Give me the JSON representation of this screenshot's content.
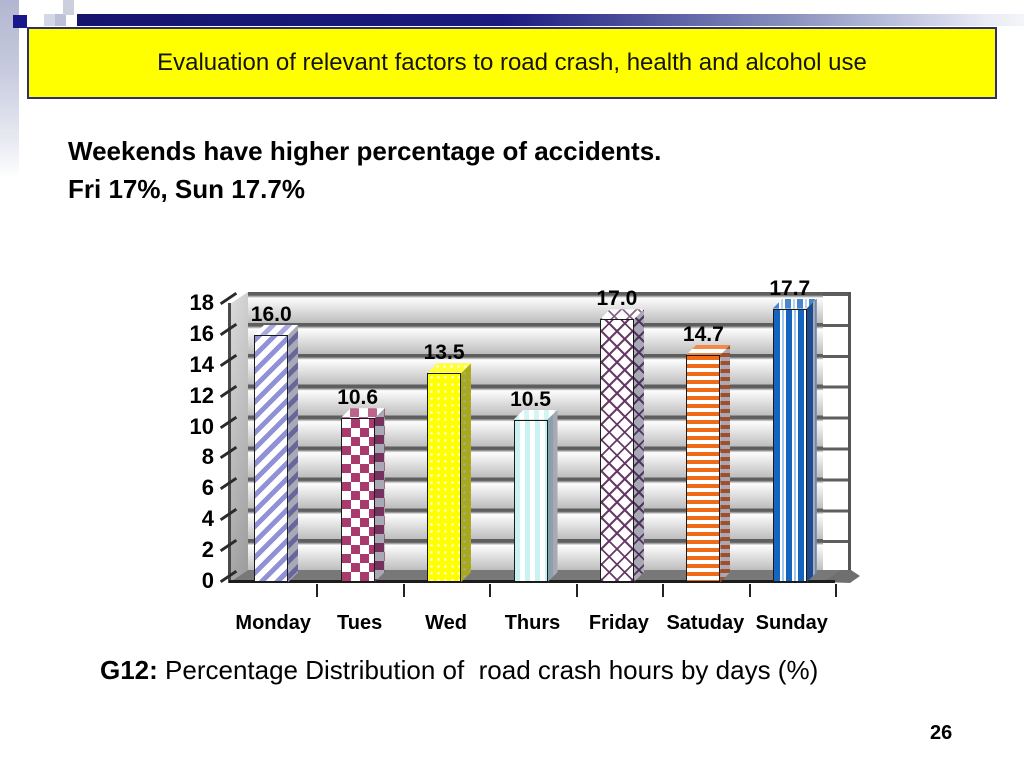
{
  "slide": {
    "banner_title": "Evaluation of relevant factors to road crash, health and alcohol use",
    "heading_line1": "Weekends have higher percentage of accidents.",
    "heading_line2": "Fri 17%, Sun 17.7%",
    "caption_label": "G12:",
    "caption_text": " Percentage Distribution of  road crash hours by days (%)",
    "page_number": "26"
  },
  "colors": {
    "banner_background": "#ffff00",
    "banner_border": "#2e2e73",
    "accent_navy": "#1a1a80",
    "wall_gridline": "#5e5e5e",
    "floor_gray": "#787878",
    "bar_monday": "#9191d8",
    "bar_tues": "#a83a6e",
    "bar_wed": "#ffff00",
    "bar_thurs": "#c9f2f2",
    "bar_friday": "#623262",
    "bar_satuday": "#f06a18",
    "bar_sunday": "#1565c0"
  },
  "chart_data": {
    "type": "bar",
    "style": "3d-column-patterned",
    "title": "",
    "xlabel": "",
    "ylabel": "",
    "categories": [
      "Monday",
      "Tues",
      "Wed",
      "Thurs",
      "Friday",
      "Satuday",
      "Sunday"
    ],
    "values": [
      16.0,
      10.6,
      13.5,
      10.5,
      17.0,
      14.7,
      17.7
    ],
    "value_labels": [
      "16.0",
      "10.6",
      "13.5",
      "10.5",
      "17.0",
      "14.7",
      "17.7"
    ],
    "ylim": [
      0,
      18
    ],
    "yticks": [
      0,
      2,
      4,
      6,
      8,
      10,
      12,
      14,
      16,
      18
    ],
    "grid": true,
    "legend": "none",
    "series_patterns": [
      {
        "day": "Monday",
        "pattern": "diagonal-stripes",
        "color": "#9191d8"
      },
      {
        "day": "Tues",
        "pattern": "diamond-checker",
        "color": "#a83a6e"
      },
      {
        "day": "Wed",
        "pattern": "solid-yellow",
        "color": "#ffff00"
      },
      {
        "day": "Thurs",
        "pattern": "vertical-stripes-pale",
        "color": "#c9f2f2"
      },
      {
        "day": "Friday",
        "pattern": "diagonal-lattice",
        "color": "#623262"
      },
      {
        "day": "Satuday",
        "pattern": "horizontal-stripes",
        "color": "#f06a18"
      },
      {
        "day": "Sunday",
        "pattern": "vertical-stripes-bold",
        "color": "#1565c0"
      }
    ]
  }
}
